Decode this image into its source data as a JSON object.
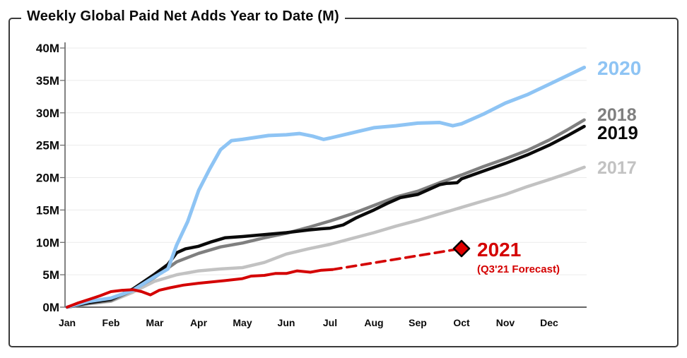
{
  "chart_data": {
    "type": "line",
    "title": "Weekly Global Paid Net Adds Year to Date (M)",
    "x_unit": "months_from_jan",
    "x_range": [
      0,
      11.8
    ],
    "grid": "horizontal",
    "legend_position": "labels-at-line-ends",
    "x_axis": {
      "ticks": [
        {
          "value": 0,
          "label": "Jan"
        },
        {
          "value": 1,
          "label": "Feb"
        },
        {
          "value": 2,
          "label": "Mar"
        },
        {
          "value": 3,
          "label": "Apr"
        },
        {
          "value": 4,
          "label": "May"
        },
        {
          "value": 5,
          "label": "Jun"
        },
        {
          "value": 6,
          "label": "Jul"
        },
        {
          "value": 7,
          "label": "Aug"
        },
        {
          "value": 8,
          "label": "Sep"
        },
        {
          "value": 9,
          "label": "Oct"
        },
        {
          "value": 10,
          "label": "Nov"
        },
        {
          "value": 11,
          "label": "Dec"
        }
      ]
    },
    "y_axis": {
      "min": 0,
      "max": 40,
      "step": 5,
      "unit": "M",
      "ticks": [
        {
          "value": 0,
          "label": "0M"
        },
        {
          "value": 5,
          "label": "5M"
        },
        {
          "value": 10,
          "label": "10M"
        },
        {
          "value": 15,
          "label": "15M"
        },
        {
          "value": 20,
          "label": "20M"
        },
        {
          "value": 25,
          "label": "25M"
        },
        {
          "value": 30,
          "label": "30M"
        },
        {
          "value": 35,
          "label": "35M"
        },
        {
          "value": 40,
          "label": "40M"
        }
      ]
    },
    "series": [
      {
        "name": "2017",
        "color": "#C2C2C2",
        "line_style": "solid",
        "points": [
          [
            0,
            0
          ],
          [
            0.5,
            0.5
          ],
          [
            1,
            0.9
          ],
          [
            1.5,
            2.3
          ],
          [
            2,
            4.0
          ],
          [
            2.5,
            5.0
          ],
          [
            3,
            5.6
          ],
          [
            3.5,
            5.9
          ],
          [
            4,
            6.1
          ],
          [
            4.5,
            6.9
          ],
          [
            5,
            8.2
          ],
          [
            5.5,
            9.0
          ],
          [
            6,
            9.7
          ],
          [
            6.5,
            10.6
          ],
          [
            7,
            11.5
          ],
          [
            7.5,
            12.5
          ],
          [
            8,
            13.4
          ],
          [
            8.5,
            14.4
          ],
          [
            9,
            15.4
          ],
          [
            9.5,
            16.4
          ],
          [
            10,
            17.4
          ],
          [
            10.5,
            18.6
          ],
          [
            11,
            19.7
          ],
          [
            11.4,
            20.6
          ],
          [
            11.8,
            21.6
          ]
        ]
      },
      {
        "name": "2018",
        "color": "#7F7F7F",
        "line_style": "solid",
        "points": [
          [
            0,
            0
          ],
          [
            0.5,
            0.6
          ],
          [
            1,
            1.0
          ],
          [
            1.5,
            2.6
          ],
          [
            2,
            4.6
          ],
          [
            2.5,
            7.0
          ],
          [
            3,
            8.3
          ],
          [
            3.5,
            9.3
          ],
          [
            4,
            9.9
          ],
          [
            4.5,
            10.7
          ],
          [
            5,
            11.4
          ],
          [
            5.5,
            12.3
          ],
          [
            6,
            13.3
          ],
          [
            6.5,
            14.4
          ],
          [
            7,
            15.7
          ],
          [
            7.5,
            17.0
          ],
          [
            8,
            17.9
          ],
          [
            8.5,
            19.2
          ],
          [
            9,
            20.4
          ],
          [
            9.5,
            21.7
          ],
          [
            10,
            22.9
          ],
          [
            10.5,
            24.2
          ],
          [
            11,
            25.8
          ],
          [
            11.4,
            27.3
          ],
          [
            11.8,
            28.9
          ]
        ]
      },
      {
        "name": "2019",
        "color": "#0A0A0A",
        "line_style": "solid",
        "points": [
          [
            0,
            0
          ],
          [
            0.5,
            0.7
          ],
          [
            1,
            1.2
          ],
          [
            1.5,
            2.8
          ],
          [
            2,
            5.1
          ],
          [
            2.3,
            6.6
          ],
          [
            2.5,
            8.4
          ],
          [
            2.7,
            9.0
          ],
          [
            3,
            9.4
          ],
          [
            3.3,
            10.1
          ],
          [
            3.6,
            10.7
          ],
          [
            4,
            10.9
          ],
          [
            4.5,
            11.2
          ],
          [
            5,
            11.5
          ],
          [
            5.5,
            11.9
          ],
          [
            5.8,
            12.1
          ],
          [
            6,
            12.2
          ],
          [
            6.3,
            12.7
          ],
          [
            6.6,
            13.8
          ],
          [
            7,
            15.0
          ],
          [
            7.3,
            16.0
          ],
          [
            7.6,
            16.9
          ],
          [
            8,
            17.4
          ],
          [
            8.3,
            18.3
          ],
          [
            8.5,
            18.9
          ],
          [
            8.65,
            19.1
          ],
          [
            8.9,
            19.2
          ],
          [
            9,
            19.8
          ],
          [
            9.5,
            21.0
          ],
          [
            10,
            22.2
          ],
          [
            10.5,
            23.5
          ],
          [
            11,
            25.0
          ],
          [
            11.4,
            26.4
          ],
          [
            11.8,
            27.9
          ]
        ]
      },
      {
        "name": "2020",
        "color": "#8EC4F4",
        "line_style": "solid",
        "points": [
          [
            0,
            0
          ],
          [
            0.5,
            0.9
          ],
          [
            1,
            1.4
          ],
          [
            1.5,
            2.6
          ],
          [
            2,
            4.7
          ],
          [
            2.3,
            5.9
          ],
          [
            2.5,
            9.6
          ],
          [
            2.75,
            13.2
          ],
          [
            3,
            18.0
          ],
          [
            3.25,
            21.3
          ],
          [
            3.5,
            24.3
          ],
          [
            3.75,
            25.7
          ],
          [
            4,
            25.9
          ],
          [
            4.3,
            26.2
          ],
          [
            4.6,
            26.5
          ],
          [
            5,
            26.6
          ],
          [
            5.3,
            26.8
          ],
          [
            5.6,
            26.4
          ],
          [
            5.85,
            25.9
          ],
          [
            6,
            26.1
          ],
          [
            6.5,
            26.9
          ],
          [
            7,
            27.7
          ],
          [
            7.5,
            28.0
          ],
          [
            8,
            28.4
          ],
          [
            8.5,
            28.5
          ],
          [
            8.8,
            28.0
          ],
          [
            9,
            28.3
          ],
          [
            9.5,
            29.8
          ],
          [
            10,
            31.5
          ],
          [
            10.5,
            32.8
          ],
          [
            11,
            34.4
          ],
          [
            11.4,
            35.7
          ],
          [
            11.8,
            37.0
          ]
        ]
      },
      {
        "name": "2021",
        "color": "#D40000",
        "line_style": "solid_then_dashed_forecast",
        "annotation": "(Q3'21 Forecast)",
        "points": [
          [
            0,
            0
          ],
          [
            0.25,
            0.65
          ],
          [
            0.5,
            1.2
          ],
          [
            0.75,
            1.75
          ],
          [
            1,
            2.4
          ],
          [
            1.25,
            2.6
          ],
          [
            1.5,
            2.7
          ],
          [
            1.7,
            2.4
          ],
          [
            1.9,
            1.9
          ],
          [
            2.1,
            2.6
          ],
          [
            2.35,
            3.0
          ],
          [
            2.65,
            3.4
          ],
          [
            3,
            3.7
          ],
          [
            3.3,
            3.9
          ],
          [
            3.6,
            4.1
          ],
          [
            4,
            4.4
          ],
          [
            4.2,
            4.8
          ],
          [
            4.5,
            4.9
          ],
          [
            4.75,
            5.2
          ],
          [
            5,
            5.2
          ],
          [
            5.25,
            5.6
          ],
          [
            5.55,
            5.4
          ],
          [
            5.8,
            5.7
          ],
          [
            6.05,
            5.8
          ]
        ],
        "forecast_points": [
          [
            6.05,
            5.8
          ],
          [
            9.0,
            9.05
          ]
        ],
        "forecast_marker": {
          "x": 9.0,
          "y": 9.05,
          "shape": "diamond",
          "fill": "#E00000",
          "stroke": "#000000"
        }
      }
    ],
    "style_colors": {
      "grid": "#EBEBEB",
      "axis": "#4D4D4D",
      "tick": "#6E6E6E",
      "text": "#0A0A0A"
    }
  }
}
